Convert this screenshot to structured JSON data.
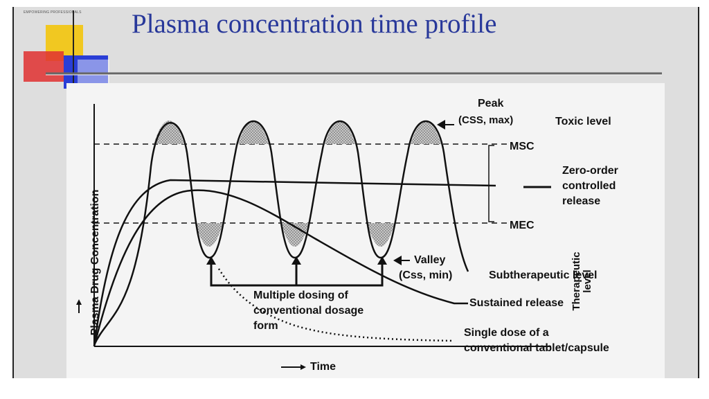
{
  "slide": {
    "brand": "EMPOWERING PROFESSIONALS",
    "title": "Plasma concentration time profile"
  },
  "figure": {
    "y_axis_label": "Plasma Drug Concentration",
    "x_axis_label": "Time",
    "peak_label": "Peak",
    "peak_sub": "(CSS, max)",
    "toxic_level": "Toxic level",
    "msc": "MSC",
    "mec": "MEC",
    "therapeutic_line1": "Therapeutic",
    "therapeutic_line2": "level",
    "zero_order": [
      "Zero-order",
      "controlled",
      "release"
    ],
    "valley_label": "Valley",
    "valley_sub": "(Css, min)",
    "subtherapeutic": "Subtherapeutic level",
    "sustained": "Sustained release",
    "multiple_dosing": [
      "Multiple dosing of",
      "conventional dosage",
      "form"
    ],
    "single_dose": [
      "Single dose of a",
      "conventional tablet/capsule"
    ]
  }
}
